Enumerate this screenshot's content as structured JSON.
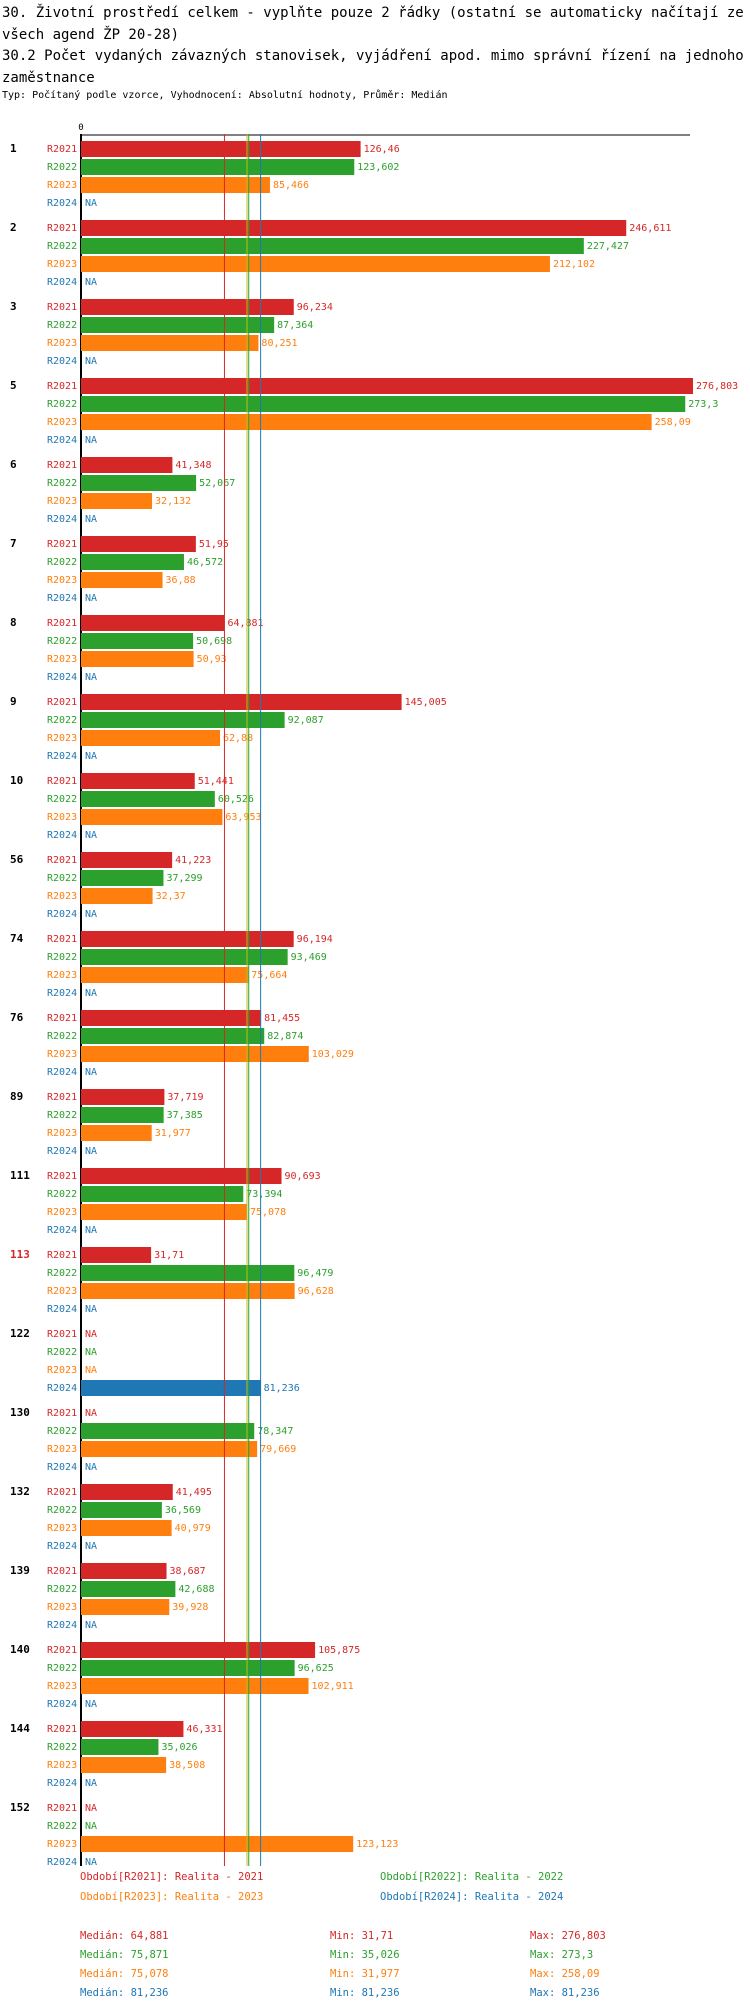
{
  "header": {
    "title1": "30. Životní prostředí celkem - vyplňte pouze 2 řádky (ostatní se automaticky načítají ze všech agend ŽP 20-28)",
    "title2": "30.2 Počet vydaných závazných stanovisek, vyjádření apod. mimo správní řízení na jednoho zaměstnance",
    "subtitle": "Typ: Počítaný podle vzorce, Vyhodnocení: Absolutní hodnoty, Průměr: Medián"
  },
  "colors": {
    "R2021": "#d62728",
    "R2022": "#2ca02c",
    "R2023": "#ff7f0e",
    "R2024": "#1f77b4",
    "highlight_group": "#d62728",
    "axis": "#000000",
    "median_2023_line": "#bcbd22"
  },
  "chart_data": {
    "type": "bar",
    "orientation": "horizontal",
    "axis_zero_label": "0",
    "xlim": [
      0,
      276.803
    ],
    "na_label": "NA",
    "series_names": [
      "R2021",
      "R2022",
      "R2023",
      "R2024"
    ],
    "highlighted_group": "113",
    "groups": [
      {
        "id": "1",
        "values": [
          126.46,
          123.602,
          85.466,
          null
        ],
        "labels": [
          "126,46",
          "123,602",
          "85,466",
          "NA"
        ]
      },
      {
        "id": "2",
        "values": [
          246.611,
          227.427,
          212.102,
          null
        ],
        "labels": [
          "246,611",
          "227,427",
          "212,102",
          "NA"
        ]
      },
      {
        "id": "3",
        "values": [
          96.234,
          87.364,
          80.251,
          null
        ],
        "labels": [
          "96,234",
          "87,364",
          "80,251",
          "NA"
        ]
      },
      {
        "id": "5",
        "values": [
          276.803,
          273.3,
          258.09,
          null
        ],
        "labels": [
          "276,803",
          "273,3",
          "258,09",
          "NA"
        ]
      },
      {
        "id": "6",
        "values": [
          41.348,
          52.067,
          32.132,
          null
        ],
        "labels": [
          "41,348",
          "52,067",
          "32,132",
          "NA"
        ]
      },
      {
        "id": "7",
        "values": [
          51.95,
          46.572,
          36.88,
          null
        ],
        "labels": [
          "51,95",
          "46,572",
          "36,88",
          "NA"
        ]
      },
      {
        "id": "8",
        "values": [
          64.881,
          50.698,
          50.93,
          null
        ],
        "labels": [
          "64,881",
          "50,698",
          "50,93",
          "NA"
        ]
      },
      {
        "id": "9",
        "values": [
          145.005,
          92.087,
          62.88,
          null
        ],
        "labels": [
          "145,005",
          "92,087",
          "62,88",
          "NA"
        ]
      },
      {
        "id": "10",
        "values": [
          51.441,
          60.526,
          63.953,
          null
        ],
        "labels": [
          "51,441",
          "60,526",
          "63,953",
          "NA"
        ]
      },
      {
        "id": "56",
        "values": [
          41.223,
          37.299,
          32.37,
          null
        ],
        "labels": [
          "41,223",
          "37,299",
          "32,37",
          "NA"
        ]
      },
      {
        "id": "74",
        "values": [
          96.194,
          93.469,
          75.664,
          null
        ],
        "labels": [
          "96,194",
          "93,469",
          "75,664",
          "NA"
        ]
      },
      {
        "id": "76",
        "values": [
          81.455,
          82.874,
          103.029,
          null
        ],
        "labels": [
          "81,455",
          "82,874",
          "103,029",
          "NA"
        ]
      },
      {
        "id": "89",
        "values": [
          37.719,
          37.385,
          31.977,
          null
        ],
        "labels": [
          "37,719",
          "37,385",
          "31,977",
          "NA"
        ]
      },
      {
        "id": "111",
        "values": [
          90.693,
          73.394,
          75.078,
          null
        ],
        "labels": [
          "90,693",
          "73,394",
          "75,078",
          "NA"
        ]
      },
      {
        "id": "113",
        "values": [
          31.71,
          96.479,
          96.628,
          null
        ],
        "labels": [
          "31,71",
          "96,479",
          "96,628",
          "NA"
        ]
      },
      {
        "id": "122",
        "values": [
          null,
          null,
          null,
          81.236
        ],
        "labels": [
          "NA",
          "NA",
          "NA",
          "81,236"
        ]
      },
      {
        "id": "130",
        "values": [
          null,
          78.347,
          79.669,
          null
        ],
        "labels": [
          "NA",
          "78,347",
          "79,669",
          "NA"
        ]
      },
      {
        "id": "132",
        "values": [
          41.495,
          36.569,
          40.979,
          null
        ],
        "labels": [
          "41,495",
          "36,569",
          "40,979",
          "NA"
        ]
      },
      {
        "id": "139",
        "values": [
          38.687,
          42.688,
          39.928,
          null
        ],
        "labels": [
          "38,687",
          "42,688",
          "39,928",
          "NA"
        ]
      },
      {
        "id": "140",
        "values": [
          105.875,
          96.625,
          102.911,
          null
        ],
        "labels": [
          "105,875",
          "96,625",
          "102,911",
          "NA"
        ]
      },
      {
        "id": "144",
        "values": [
          46.331,
          35.026,
          38.508,
          null
        ],
        "labels": [
          "46,331",
          "35,026",
          "38,508",
          "NA"
        ]
      },
      {
        "id": "152",
        "values": [
          null,
          null,
          123.123,
          null
        ],
        "labels": [
          "NA",
          "NA",
          "123,123",
          "NA"
        ]
      }
    ],
    "reference_lines": [
      {
        "series": "R2021",
        "value": 64.881
      },
      {
        "series": "R2022",
        "value": 75.871
      },
      {
        "series": "R2023",
        "value": 75.078
      },
      {
        "series": "R2024",
        "value": 81.236
      }
    ]
  },
  "legend": {
    "items": [
      {
        "series": "R2021",
        "label": "Období[R2021]: Realita - 2021"
      },
      {
        "series": "R2022",
        "label": "Období[R2022]: Realita - 2022"
      },
      {
        "series": "R2023",
        "label": "Období[R2023]: Realita - 2023"
      },
      {
        "series": "R2024",
        "label": "Období[R2024]: Realita - 2024"
      }
    ]
  },
  "stats": {
    "rows": [
      {
        "series": "R2021",
        "median": "Medián: 64,881",
        "min": "Min: 31,71",
        "max": "Max: 276,803"
      },
      {
        "series": "R2022",
        "median": "Medián: 75,871",
        "min": "Min: 35,026",
        "max": "Max: 273,3"
      },
      {
        "series": "R2023",
        "median": "Medián: 75,078",
        "min": "Min: 31,977",
        "max": "Max: 258,09"
      },
      {
        "series": "R2024",
        "median": "Medián: 81,236",
        "min": "Min: 81,236",
        "max": "Max: 81,236"
      }
    ]
  }
}
